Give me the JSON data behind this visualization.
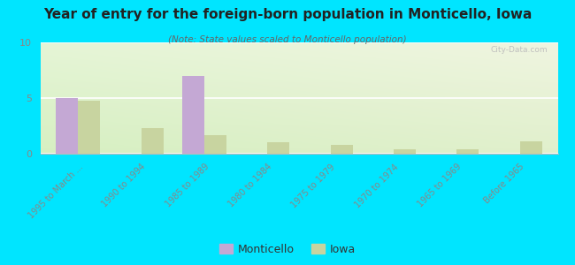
{
  "title": "Year of entry for the foreign-born population in Monticello, Iowa",
  "subtitle": "(Note: State values scaled to Monticello population)",
  "categories": [
    "1995 to March ...",
    "1990 to 1994",
    "1985 to 1989",
    "1980 to 1984",
    "1975 to 1979",
    "1970 to 1974",
    "1965 to 1969",
    "Before 1965"
  ],
  "monticello_values": [
    5,
    0,
    7,
    0,
    0,
    0,
    0,
    0
  ],
  "iowa_values": [
    4.8,
    2.3,
    1.7,
    1.0,
    0.8,
    0.4,
    0.4,
    1.1
  ],
  "monticello_color": "#c4a8d4",
  "iowa_color": "#c8d4a0",
  "background_color": "#00e5ff",
  "ylim": [
    0,
    10
  ],
  "yticks": [
    0,
    5,
    10
  ],
  "bar_width": 0.35,
  "watermark": "City-Data.com",
  "legend_monticello": "Monticello",
  "legend_iowa": "Iowa",
  "grid_color": "#ffffff",
  "tick_color": "#888888",
  "title_color": "#222222",
  "subtitle_color": "#666666"
}
